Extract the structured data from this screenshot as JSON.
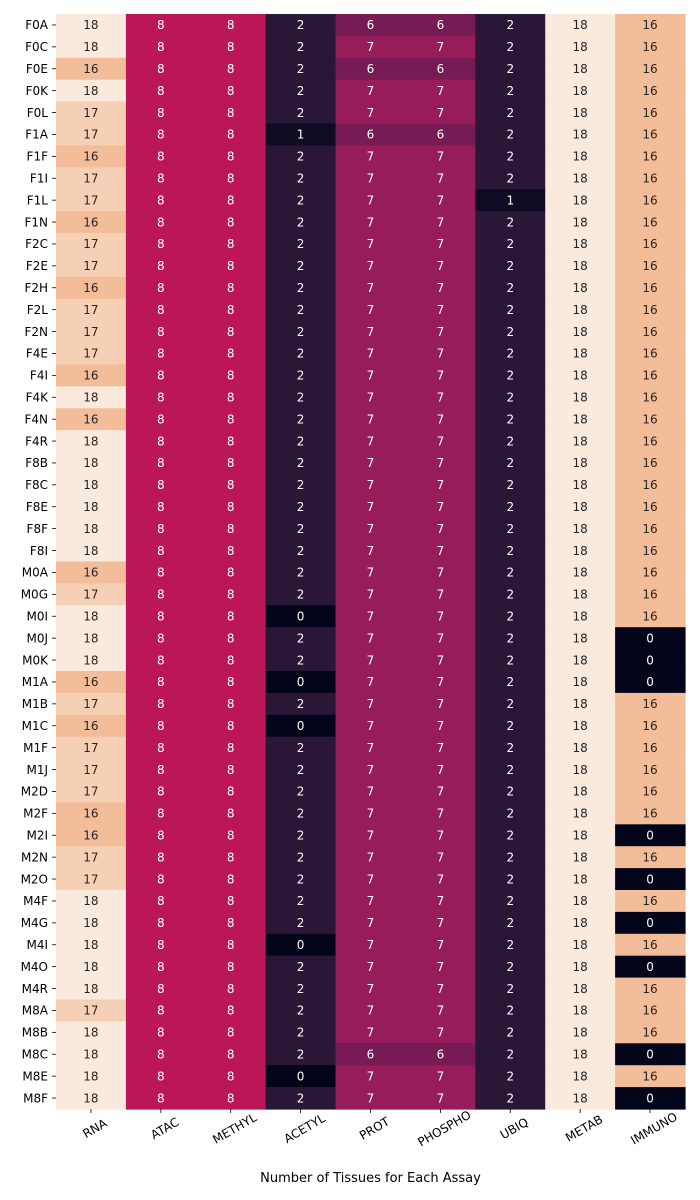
{
  "chart_data": {
    "type": "heatmap",
    "title": "",
    "xlabel": "Number of Tissues for Each Assay",
    "ylabel": "",
    "x_categories": [
      "RNA",
      "ATAC",
      "METHYL",
      "ACETYL",
      "PROT",
      "PHOSPHO",
      "UBIQ",
      "METAB",
      "IMMUNO"
    ],
    "y_categories": [
      "F0A",
      "F0C",
      "F0E",
      "F0K",
      "F0L",
      "F1A",
      "F1F",
      "F1I",
      "F1L",
      "F1N",
      "F2C",
      "F2E",
      "F2H",
      "F2L",
      "F2N",
      "F4E",
      "F4I",
      "F4K",
      "F4N",
      "F4R",
      "F8B",
      "F8C",
      "F8E",
      "F8F",
      "F8I",
      "M0A",
      "M0G",
      "M0I",
      "M0J",
      "M0K",
      "M1A",
      "M1B",
      "M1C",
      "M1F",
      "M1J",
      "M2D",
      "M2F",
      "M2I",
      "M2N",
      "M2O",
      "M4F",
      "M4G",
      "M4I",
      "M4O",
      "M4R",
      "M8A",
      "M8B",
      "M8C",
      "M8E",
      "M8F"
    ],
    "values": [
      [
        18,
        8,
        8,
        2,
        6,
        6,
        2,
        18,
        16
      ],
      [
        18,
        8,
        8,
        2,
        7,
        7,
        2,
        18,
        16
      ],
      [
        16,
        8,
        8,
        2,
        6,
        6,
        2,
        18,
        16
      ],
      [
        18,
        8,
        8,
        2,
        7,
        7,
        2,
        18,
        16
      ],
      [
        17,
        8,
        8,
        2,
        7,
        7,
        2,
        18,
        16
      ],
      [
        17,
        8,
        8,
        1,
        6,
        6,
        2,
        18,
        16
      ],
      [
        16,
        8,
        8,
        2,
        7,
        7,
        2,
        18,
        16
      ],
      [
        17,
        8,
        8,
        2,
        7,
        7,
        2,
        18,
        16
      ],
      [
        17,
        8,
        8,
        2,
        7,
        7,
        1,
        18,
        16
      ],
      [
        16,
        8,
        8,
        2,
        7,
        7,
        2,
        18,
        16
      ],
      [
        17,
        8,
        8,
        2,
        7,
        7,
        2,
        18,
        16
      ],
      [
        17,
        8,
        8,
        2,
        7,
        7,
        2,
        18,
        16
      ],
      [
        16,
        8,
        8,
        2,
        7,
        7,
        2,
        18,
        16
      ],
      [
        17,
        8,
        8,
        2,
        7,
        7,
        2,
        18,
        16
      ],
      [
        17,
        8,
        8,
        2,
        7,
        7,
        2,
        18,
        16
      ],
      [
        17,
        8,
        8,
        2,
        7,
        7,
        2,
        18,
        16
      ],
      [
        16,
        8,
        8,
        2,
        7,
        7,
        2,
        18,
        16
      ],
      [
        18,
        8,
        8,
        2,
        7,
        7,
        2,
        18,
        16
      ],
      [
        16,
        8,
        8,
        2,
        7,
        7,
        2,
        18,
        16
      ],
      [
        18,
        8,
        8,
        2,
        7,
        7,
        2,
        18,
        16
      ],
      [
        18,
        8,
        8,
        2,
        7,
        7,
        2,
        18,
        16
      ],
      [
        18,
        8,
        8,
        2,
        7,
        7,
        2,
        18,
        16
      ],
      [
        18,
        8,
        8,
        2,
        7,
        7,
        2,
        18,
        16
      ],
      [
        18,
        8,
        8,
        2,
        7,
        7,
        2,
        18,
        16
      ],
      [
        18,
        8,
        8,
        2,
        7,
        7,
        2,
        18,
        16
      ],
      [
        16,
        8,
        8,
        2,
        7,
        7,
        2,
        18,
        16
      ],
      [
        17,
        8,
        8,
        2,
        7,
        7,
        2,
        18,
        16
      ],
      [
        18,
        8,
        8,
        0,
        7,
        7,
        2,
        18,
        16
      ],
      [
        18,
        8,
        8,
        2,
        7,
        7,
        2,
        18,
        0
      ],
      [
        18,
        8,
        8,
        2,
        7,
        7,
        2,
        18,
        0
      ],
      [
        16,
        8,
        8,
        0,
        7,
        7,
        2,
        18,
        0
      ],
      [
        17,
        8,
        8,
        2,
        7,
        7,
        2,
        18,
        16
      ],
      [
        16,
        8,
        8,
        0,
        7,
        7,
        2,
        18,
        16
      ],
      [
        17,
        8,
        8,
        2,
        7,
        7,
        2,
        18,
        16
      ],
      [
        17,
        8,
        8,
        2,
        7,
        7,
        2,
        18,
        16
      ],
      [
        17,
        8,
        8,
        2,
        7,
        7,
        2,
        18,
        16
      ],
      [
        16,
        8,
        8,
        2,
        7,
        7,
        2,
        18,
        16
      ],
      [
        16,
        8,
        8,
        2,
        7,
        7,
        2,
        18,
        0
      ],
      [
        17,
        8,
        8,
        2,
        7,
        7,
        2,
        18,
        16
      ],
      [
        17,
        8,
        8,
        2,
        7,
        7,
        2,
        18,
        0
      ],
      [
        18,
        8,
        8,
        2,
        7,
        7,
        2,
        18,
        16
      ],
      [
        18,
        8,
        8,
        2,
        7,
        7,
        2,
        18,
        0
      ],
      [
        18,
        8,
        8,
        0,
        7,
        7,
        2,
        18,
        16
      ],
      [
        18,
        8,
        8,
        2,
        7,
        7,
        2,
        18,
        0
      ],
      [
        18,
        8,
        8,
        2,
        7,
        7,
        2,
        18,
        16
      ],
      [
        17,
        8,
        8,
        2,
        7,
        7,
        2,
        18,
        16
      ],
      [
        18,
        8,
        8,
        2,
        7,
        7,
        2,
        18,
        16
      ],
      [
        18,
        8,
        8,
        2,
        6,
        6,
        2,
        18,
        0
      ],
      [
        18,
        8,
        8,
        0,
        7,
        7,
        2,
        18,
        16
      ],
      [
        18,
        8,
        8,
        2,
        7,
        7,
        2,
        18,
        0
      ]
    ],
    "value_colors": {
      "0": "#03051a",
      "1": "#0f0b22",
      "2": "#2a1636",
      "6": "#771b56",
      "7": "#971c5b",
      "8": "#bb1656",
      "16": "#f4bd9a",
      "17": "#f6d0b5",
      "18": "#fae9dd"
    },
    "grid": false,
    "legend": "none",
    "colormap": "rocket"
  }
}
